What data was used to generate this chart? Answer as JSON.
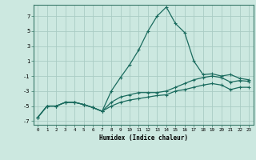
{
  "xlabel": "Humidex (Indice chaleur)",
  "background_color": "#cce8e0",
  "grid_color": "#aaccc4",
  "line_color": "#1a6b5e",
  "x_values": [
    0,
    1,
    2,
    3,
    4,
    5,
    6,
    7,
    8,
    9,
    10,
    11,
    12,
    13,
    14,
    15,
    16,
    17,
    18,
    19,
    20,
    21,
    22,
    23
  ],
  "line1": [
    -6.5,
    -5.0,
    -5.0,
    -4.5,
    -4.5,
    -4.8,
    -5.2,
    -5.7,
    -3.0,
    -1.2,
    0.5,
    2.5,
    5.0,
    7.0,
    8.2,
    6.0,
    4.8,
    1.0,
    -0.8,
    -0.7,
    -1.0,
    -0.8,
    -1.3,
    -1.5
  ],
  "line2": [
    -6.5,
    -5.0,
    -5.0,
    -4.5,
    -4.5,
    -4.8,
    -5.2,
    -5.7,
    -4.5,
    -3.8,
    -3.5,
    -3.2,
    -3.2,
    -3.2,
    -3.0,
    -2.5,
    -2.0,
    -1.5,
    -1.2,
    -1.0,
    -1.2,
    -1.8,
    -1.6,
    -1.7
  ],
  "line3": [
    -6.5,
    -5.0,
    -5.0,
    -4.5,
    -4.5,
    -4.8,
    -5.2,
    -5.7,
    -5.0,
    -4.5,
    -4.2,
    -4.0,
    -3.8,
    -3.6,
    -3.5,
    -3.0,
    -2.8,
    -2.5,
    -2.2,
    -2.0,
    -2.2,
    -2.8,
    -2.5,
    -2.5
  ],
  "ylim": [
    -7.5,
    8.5
  ],
  "xlim": [
    -0.5,
    23.5
  ],
  "yticks": [
    -7,
    -5,
    -3,
    -1,
    1,
    3,
    5,
    7
  ],
  "xticks": [
    0,
    1,
    2,
    3,
    4,
    5,
    6,
    7,
    8,
    9,
    10,
    11,
    12,
    13,
    14,
    15,
    16,
    17,
    18,
    19,
    20,
    21,
    22,
    23
  ]
}
